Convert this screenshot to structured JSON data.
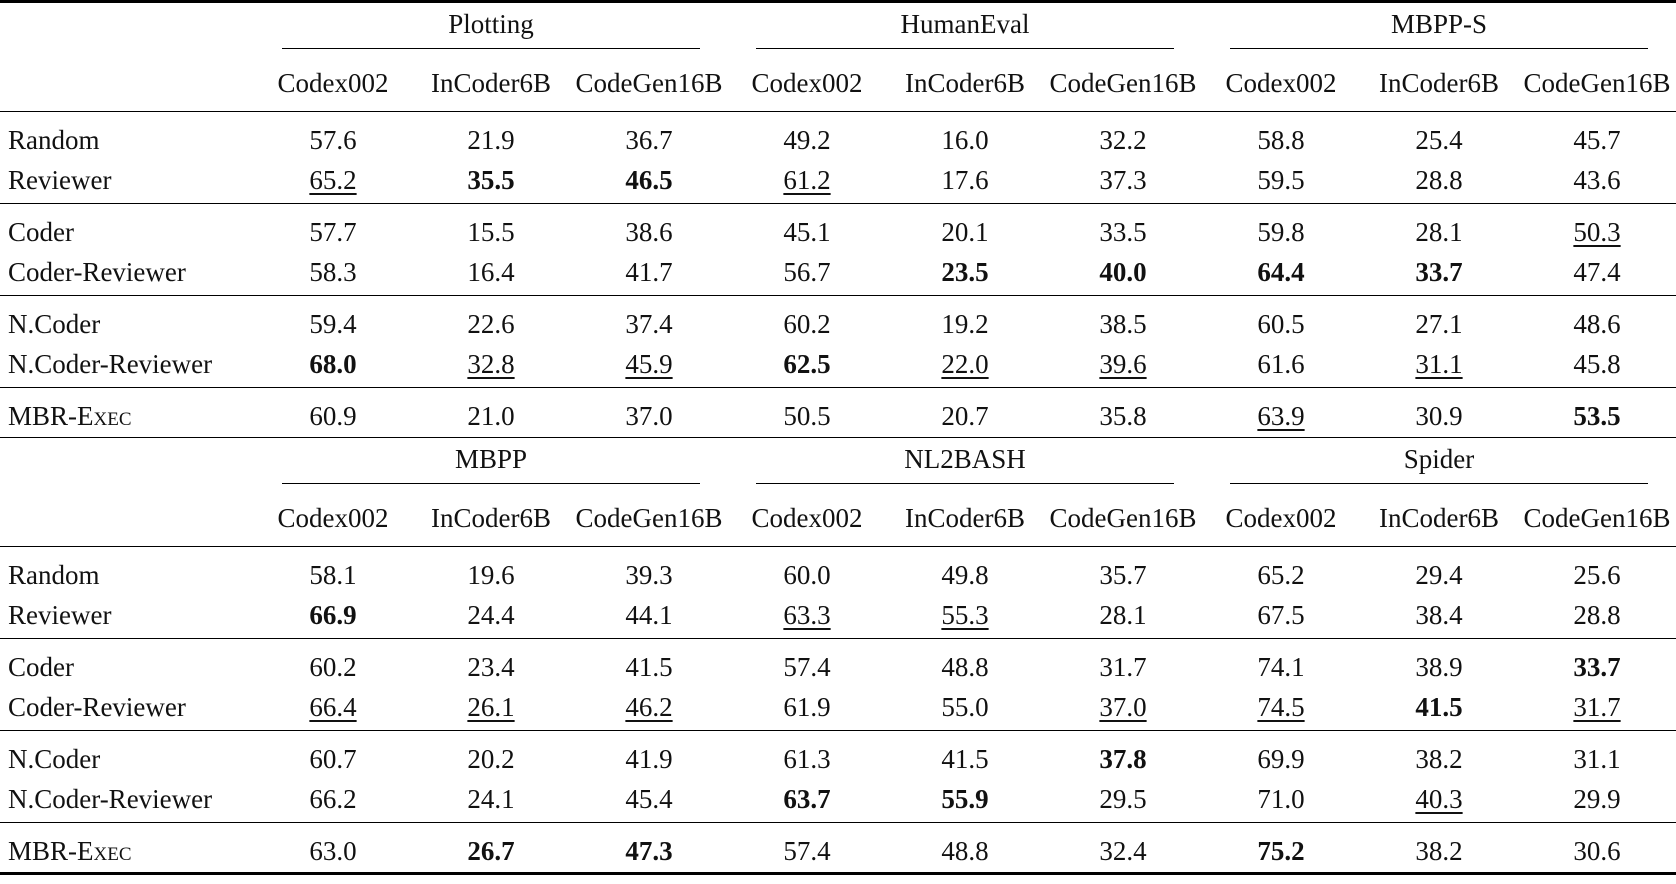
{
  "models": [
    "Codex002",
    "InCoder6B",
    "CodeGen16B"
  ],
  "panels": [
    {
      "datasets": [
        "Plotting",
        "HumanEval",
        "MBPP-S"
      ],
      "groups": [
        [
          {
            "method": "Random",
            "values": [
              {
                "v": "57.6"
              },
              {
                "v": "21.9"
              },
              {
                "v": "36.7"
              },
              {
                "v": "49.2"
              },
              {
                "v": "16.0"
              },
              {
                "v": "32.2"
              },
              {
                "v": "58.8"
              },
              {
                "v": "25.4"
              },
              {
                "v": "45.7"
              }
            ]
          },
          {
            "method": "Reviewer",
            "values": [
              {
                "v": "65.2",
                "u": true
              },
              {
                "v": "35.5",
                "b": true
              },
              {
                "v": "46.5",
                "b": true
              },
              {
                "v": "61.2",
                "u": true
              },
              {
                "v": "17.6"
              },
              {
                "v": "37.3"
              },
              {
                "v": "59.5"
              },
              {
                "v": "28.8"
              },
              {
                "v": "43.6"
              }
            ]
          }
        ],
        [
          {
            "method": "Coder",
            "values": [
              {
                "v": "57.7"
              },
              {
                "v": "15.5"
              },
              {
                "v": "38.6"
              },
              {
                "v": "45.1"
              },
              {
                "v": "20.1"
              },
              {
                "v": "33.5"
              },
              {
                "v": "59.8"
              },
              {
                "v": "28.1"
              },
              {
                "v": "50.3",
                "u": true
              }
            ]
          },
          {
            "method": "Coder-Reviewer",
            "values": [
              {
                "v": "58.3"
              },
              {
                "v": "16.4"
              },
              {
                "v": "41.7"
              },
              {
                "v": "56.7"
              },
              {
                "v": "23.5",
                "b": true
              },
              {
                "v": "40.0",
                "b": true
              },
              {
                "v": "64.4",
                "b": true
              },
              {
                "v": "33.7",
                "b": true
              },
              {
                "v": "47.4"
              }
            ]
          }
        ],
        [
          {
            "method": "N.Coder",
            "values": [
              {
                "v": "59.4"
              },
              {
                "v": "22.6"
              },
              {
                "v": "37.4"
              },
              {
                "v": "60.2"
              },
              {
                "v": "19.2"
              },
              {
                "v": "38.5"
              },
              {
                "v": "60.5"
              },
              {
                "v": "27.1"
              },
              {
                "v": "48.6"
              }
            ]
          },
          {
            "method": "N.Coder-Reviewer",
            "values": [
              {
                "v": "68.0",
                "b": true
              },
              {
                "v": "32.8",
                "u": true
              },
              {
                "v": "45.9",
                "u": true
              },
              {
                "v": "62.5",
                "b": true
              },
              {
                "v": "22.0",
                "u": true
              },
              {
                "v": "39.6",
                "u": true
              },
              {
                "v": "61.6"
              },
              {
                "v": "31.1",
                "u": true
              },
              {
                "v": "45.8"
              }
            ]
          }
        ],
        [
          {
            "method": "MBR-Exec",
            "sc": true,
            "values": [
              {
                "v": "60.9"
              },
              {
                "v": "21.0"
              },
              {
                "v": "37.0"
              },
              {
                "v": "50.5"
              },
              {
                "v": "20.7"
              },
              {
                "v": "35.8"
              },
              {
                "v": "63.9",
                "u": true
              },
              {
                "v": "30.9"
              },
              {
                "v": "53.5",
                "b": true
              }
            ]
          }
        ]
      ]
    },
    {
      "datasets": [
        "MBPP",
        "NL2BASH",
        "Spider"
      ],
      "groups": [
        [
          {
            "method": "Random",
            "values": [
              {
                "v": "58.1"
              },
              {
                "v": "19.6"
              },
              {
                "v": "39.3"
              },
              {
                "v": "60.0"
              },
              {
                "v": "49.8"
              },
              {
                "v": "35.7"
              },
              {
                "v": "65.2"
              },
              {
                "v": "29.4"
              },
              {
                "v": "25.6"
              }
            ]
          },
          {
            "method": "Reviewer",
            "values": [
              {
                "v": "66.9",
                "b": true
              },
              {
                "v": "24.4"
              },
              {
                "v": "44.1"
              },
              {
                "v": "63.3",
                "u": true
              },
              {
                "v": "55.3",
                "u": true
              },
              {
                "v": "28.1"
              },
              {
                "v": "67.5"
              },
              {
                "v": "38.4"
              },
              {
                "v": "28.8"
              }
            ]
          }
        ],
        [
          {
            "method": "Coder",
            "values": [
              {
                "v": "60.2"
              },
              {
                "v": "23.4"
              },
              {
                "v": "41.5"
              },
              {
                "v": "57.4"
              },
              {
                "v": "48.8"
              },
              {
                "v": "31.7"
              },
              {
                "v": "74.1"
              },
              {
                "v": "38.9"
              },
              {
                "v": "33.7",
                "b": true
              }
            ]
          },
          {
            "method": "Coder-Reviewer",
            "values": [
              {
                "v": "66.4",
                "u": true
              },
              {
                "v": "26.1",
                "u": true
              },
              {
                "v": "46.2",
                "u": true
              },
              {
                "v": "61.9"
              },
              {
                "v": "55.0"
              },
              {
                "v": "37.0",
                "u": true
              },
              {
                "v": "74.5",
                "u": true
              },
              {
                "v": "41.5",
                "b": true
              },
              {
                "v": "31.7",
                "u": true
              }
            ]
          }
        ],
        [
          {
            "method": "N.Coder",
            "values": [
              {
                "v": "60.7"
              },
              {
                "v": "20.2"
              },
              {
                "v": "41.9"
              },
              {
                "v": "61.3"
              },
              {
                "v": "41.5"
              },
              {
                "v": "37.8",
                "b": true
              },
              {
                "v": "69.9"
              },
              {
                "v": "38.2"
              },
              {
                "v": "31.1"
              }
            ]
          },
          {
            "method": "N.Coder-Reviewer",
            "values": [
              {
                "v": "66.2"
              },
              {
                "v": "24.1"
              },
              {
                "v": "45.4"
              },
              {
                "v": "63.7",
                "b": true
              },
              {
                "v": "55.9",
                "b": true
              },
              {
                "v": "29.5"
              },
              {
                "v": "71.0"
              },
              {
                "v": "40.3",
                "u": true
              },
              {
                "v": "29.9"
              }
            ]
          }
        ],
        [
          {
            "method": "MBR-Exec",
            "sc": true,
            "values": [
              {
                "v": "63.0"
              },
              {
                "v": "26.7",
                "b": true
              },
              {
                "v": "47.3",
                "b": true
              },
              {
                "v": "57.4"
              },
              {
                "v": "48.8"
              },
              {
                "v": "32.4"
              },
              {
                "v": "75.2",
                "b": true
              },
              {
                "v": "38.2"
              },
              {
                "v": "30.6"
              }
            ]
          }
        ]
      ]
    }
  ]
}
